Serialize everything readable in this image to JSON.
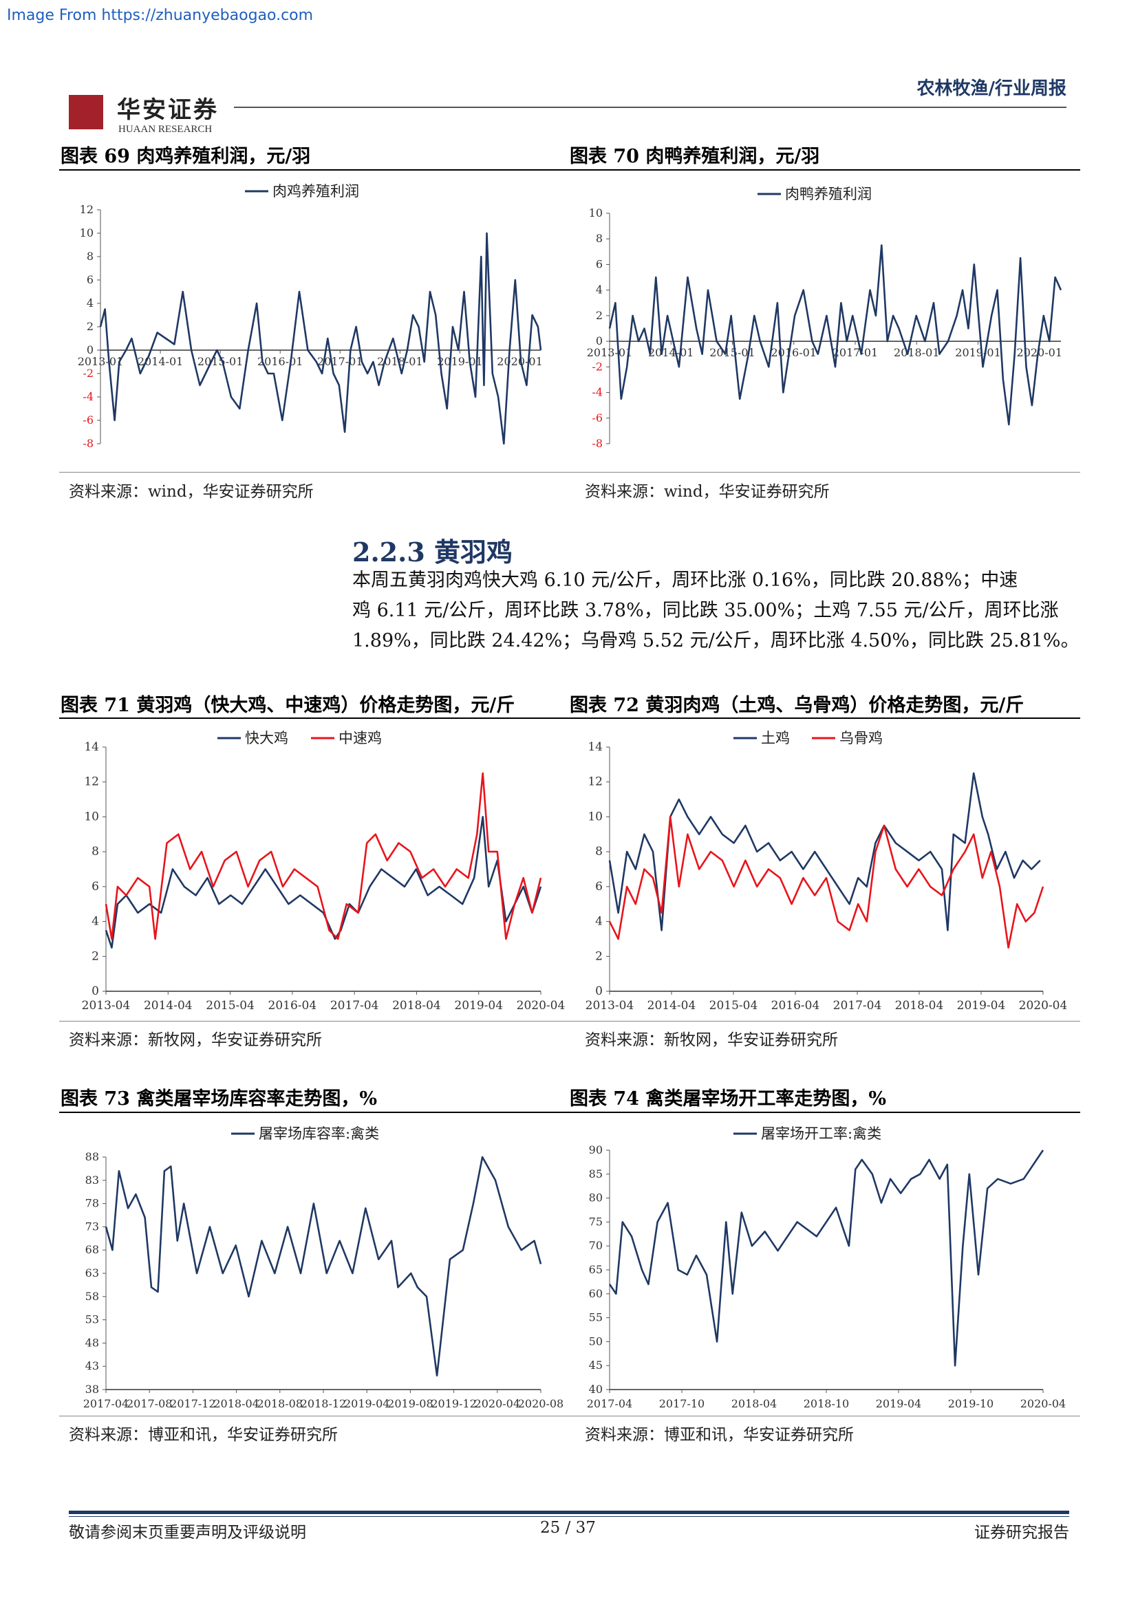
{
  "watermark": "Image From https://zhuanyebaogao.com",
  "header": {
    "logo_cn": "华安证券",
    "logo_en": "HUAAN RESEARCH",
    "category": "农林牧渔/行业周报"
  },
  "section": {
    "title": "2.2.3 黄羽鸡",
    "paragraph_lines": [
      "本周五黄羽肉鸡快大鸡 6.10 元/公斤，周环比涨 0.16%，同比跌 20.88%；中速",
      "鸡 6.11 元/公斤，周环比跌 3.78%，同比跌 35.00%；土鸡 7.55 元/公斤，周环比涨",
      "1.89%，同比跌 24.42%；乌骨鸡 5.52 元/公斤，周环比涨 4.50%，同比跌 25.81%。"
    ]
  },
  "figures": {
    "f69": {
      "title": "图表 69 肉鸡养殖利润，元/羽",
      "source": "资料来源：wind，华安证券研究所"
    },
    "f70": {
      "title": "图表 70 肉鸭养殖利润，元/羽",
      "source": "资料来源：wind，华安证券研究所"
    },
    "f71": {
      "title": "图表 71 黄羽鸡（快大鸡、中速鸡）价格走势图，元/斤",
      "source": "资料来源：新牧网，华安证券研究所"
    },
    "f72": {
      "title": "图表 72 黄羽肉鸡（土鸡、乌骨鸡）价格走势图，元/斤",
      "source": "资料来源：新牧网，华安证券研究所"
    },
    "f73": {
      "title": "图表 73 禽类屠宰场库容率走势图，%",
      "source": "资料来源：博亚和讯，华安证券研究所"
    },
    "f74": {
      "title": "图表 74 禽类屠宰场开工率走势图，%",
      "source": "资料来源：博亚和讯，华安证券研究所"
    }
  },
  "footer": {
    "disclaimer": "敬请参阅末页重要声明及评级说明",
    "page": "25 / 37",
    "report_type": "证券研究报告"
  },
  "chart_data": [
    {
      "id": "c69",
      "type": "line",
      "yticks": [
        "12",
        "10",
        "8",
        "6",
        "4",
        "2",
        "0",
        "-2",
        "-4",
        "-6",
        "-8"
      ],
      "ylim": [
        -8,
        12
      ],
      "xticks": [
        "2013-01",
        "2014-01",
        "2015-01",
        "2016-01",
        "2017-01",
        "2018-01",
        "2019-01",
        "2020-01"
      ],
      "xlim": [
        2013.0,
        2020.75
      ],
      "series": [
        {
          "name": "肉鸡养殖利润",
          "color": "#1f3864",
          "x": [
            2013.0,
            2013.08,
            2013.15,
            2013.25,
            2013.33,
            2013.45,
            2013.55,
            2013.7,
            2013.85,
            2014.0,
            2014.15,
            2014.3,
            2014.45,
            2014.6,
            2014.75,
            2014.85,
            2014.95,
            2015.05,
            2015.15,
            2015.3,
            2015.45,
            2015.6,
            2015.75,
            2015.85,
            2015.95,
            2016.05,
            2016.2,
            2016.35,
            2016.5,
            2016.65,
            2016.8,
            2016.9,
            2017.0,
            2017.1,
            2017.2,
            2017.3,
            2017.4,
            2017.5,
            2017.6,
            2017.7,
            2017.8,
            2017.9,
            2018.0,
            2018.15,
            2018.3,
            2018.4,
            2018.5,
            2018.6,
            2018.7,
            2018.8,
            2018.9,
            2019.0,
            2019.1,
            2019.2,
            2019.3,
            2019.4,
            2019.5,
            2019.6,
            2019.7,
            2019.75,
            2019.8,
            2019.9,
            2020.0,
            2020.1,
            2020.2,
            2020.3,
            2020.4,
            2020.5,
            2020.6,
            2020.7,
            2020.75
          ],
          "y": [
            2,
            3.5,
            -1,
            -6,
            -1,
            0,
            1,
            -2,
            -0.5,
            1.5,
            1,
            0.5,
            5,
            0,
            -3,
            -2,
            -1,
            0,
            -1,
            -4,
            -5,
            0,
            4,
            -1,
            -2,
            -2,
            -6,
            -1,
            5,
            0,
            -1,
            -2,
            1,
            -2,
            -3,
            -7,
            0,
            2,
            -1,
            -2,
            -1,
            -3,
            -1,
            1,
            -2,
            0,
            3,
            2,
            -1,
            5,
            3,
            -2,
            -5,
            2,
            0,
            5,
            -1,
            -4,
            8,
            -3,
            10,
            -2,
            -4,
            -8,
            0,
            6,
            -1,
            -3,
            3,
            2,
            0
          ]
        }
      ]
    },
    {
      "id": "c70",
      "type": "line",
      "yticks": [
        "10",
        "8",
        "6",
        "4",
        "2",
        "0",
        "-2",
        "-4",
        "-6",
        "-8"
      ],
      "ylim": [
        -8,
        10
      ],
      "xticks": [
        "2013-01",
        "2014-01",
        "2015-01",
        "2016-01",
        "2017-01",
        "2018-01",
        "2019-01",
        "2020-01"
      ],
      "xlim": [
        2013.0,
        2020.8
      ],
      "series": [
        {
          "name": "肉鸭养殖利润",
          "color": "#1f3864",
          "x": [
            2013.0,
            2013.1,
            2013.2,
            2013.3,
            2013.4,
            2013.5,
            2013.6,
            2013.7,
            2013.8,
            2013.9,
            2014.0,
            2014.1,
            2014.2,
            2014.35,
            2014.5,
            2014.6,
            2014.7,
            2014.85,
            2015.0,
            2015.1,
            2015.25,
            2015.4,
            2015.5,
            2015.6,
            2015.75,
            2015.9,
            2016.0,
            2016.1,
            2016.2,
            2016.35,
            2016.5,
            2016.6,
            2016.75,
            2016.9,
            2017.0,
            2017.1,
            2017.2,
            2017.35,
            2017.5,
            2017.6,
            2017.7,
            2017.8,
            2017.9,
            2018.0,
            2018.15,
            2018.3,
            2018.45,
            2018.6,
            2018.7,
            2018.85,
            2019.0,
            2019.1,
            2019.2,
            2019.3,
            2019.45,
            2019.6,
            2019.7,
            2019.8,
            2019.9,
            2020.0,
            2020.1,
            2020.2,
            2020.3,
            2020.4,
            2020.5,
            2020.6,
            2020.7,
            2020.8
          ],
          "y": [
            1,
            3,
            -4.5,
            -2,
            2,
            0,
            1,
            -1,
            5,
            -1,
            2,
            0,
            -2,
            5,
            1,
            -1,
            4,
            0,
            -1,
            2,
            -4.5,
            -1,
            2,
            0,
            -2,
            3,
            -4,
            -1,
            2,
            4,
            0,
            -1,
            2,
            -2,
            3,
            0,
            2,
            -1,
            4,
            2,
            7.5,
            0,
            2,
            1,
            -1,
            2,
            0,
            3,
            -1,
            0,
            2,
            4,
            1,
            6,
            -2,
            2,
            4,
            -3,
            -6.5,
            -1,
            6.5,
            -2,
            -5,
            -1,
            2,
            0,
            5,
            4
          ]
        }
      ]
    },
    {
      "id": "c71",
      "type": "line",
      "yticks": [
        "14",
        "12",
        "10",
        "8",
        "6",
        "4",
        "2",
        "0"
      ],
      "ylim": [
        0,
        14
      ],
      "xticks": [
        "2013-04",
        "2014-04",
        "2015-04",
        "2016-04",
        "2017-04",
        "2018-04",
        "2019-04",
        "2020-04"
      ],
      "xlim": [
        2013.25,
        2020.75
      ],
      "series": [
        {
          "name": "快大鸡",
          "color": "#1f3864",
          "x": [
            2013.25,
            2013.35,
            2013.45,
            2013.6,
            2013.8,
            2014.0,
            2014.2,
            2014.4,
            2014.6,
            2014.8,
            2015.0,
            2015.2,
            2015.4,
            2015.6,
            2015.8,
            2016.0,
            2016.2,
            2016.4,
            2016.6,
            2016.8,
            2017.0,
            2017.2,
            2017.3,
            2017.45,
            2017.6,
            2017.8,
            2018.0,
            2018.2,
            2018.4,
            2018.6,
            2018.8,
            2019.0,
            2019.2,
            2019.4,
            2019.6,
            2019.75,
            2019.85,
            2020.0,
            2020.15,
            2020.3,
            2020.45,
            2020.6,
            2020.75
          ],
          "y": [
            3.5,
            2.5,
            5,
            5.5,
            4.5,
            5,
            4.5,
            7,
            6,
            5.5,
            6.5,
            5,
            5.5,
            5,
            6,
            7,
            6,
            5,
            5.5,
            5,
            4.5,
            3,
            3.5,
            5,
            4.5,
            6,
            7,
            6.5,
            6,
            7,
            5.5,
            6,
            5.5,
            5,
            6.5,
            10,
            6,
            7.5,
            4,
            5,
            6,
            4.5,
            6
          ]
        },
        {
          "name": "中速鸡",
          "color": "#e8141b",
          "x": [
            2013.25,
            2013.35,
            2013.45,
            2013.6,
            2013.8,
            2014.0,
            2014.1,
            2014.3,
            2014.5,
            2014.7,
            2014.9,
            2015.1,
            2015.3,
            2015.5,
            2015.7,
            2015.9,
            2016.1,
            2016.3,
            2016.5,
            2016.7,
            2016.9,
            2017.1,
            2017.25,
            2017.4,
            2017.6,
            2017.75,
            2017.9,
            2018.1,
            2018.3,
            2018.5,
            2018.7,
            2018.9,
            2019.1,
            2019.3,
            2019.5,
            2019.65,
            2019.75,
            2019.85,
            2020.0,
            2020.15,
            2020.3,
            2020.45,
            2020.6,
            2020.75
          ],
          "y": [
            5,
            3,
            6,
            5.5,
            6.5,
            6,
            3,
            8.5,
            9,
            7,
            8,
            6,
            7.5,
            8,
            6,
            7.5,
            8,
            6,
            7,
            6.5,
            6,
            3.5,
            3,
            5,
            4.5,
            8.5,
            9,
            7.5,
            8.5,
            8,
            6.5,
            7,
            6,
            7,
            6.5,
            9,
            12.5,
            8,
            8,
            3,
            5,
            6.5,
            4.5,
            6.5
          ]
        }
      ]
    },
    {
      "id": "c72",
      "type": "line",
      "yticks": [
        "14",
        "12",
        "10",
        "8",
        "6",
        "4",
        "2",
        "0"
      ],
      "ylim": [
        0,
        14
      ],
      "xticks": [
        "2013-04",
        "2014-04",
        "2015-04",
        "2016-04",
        "2017-04",
        "2018-04",
        "2019-04",
        "2020-04"
      ],
      "xlim": [
        2013.25,
        2020.75
      ],
      "series": [
        {
          "name": "土鸡",
          "color": "#1f3864",
          "x": [
            2013.25,
            2013.4,
            2013.55,
            2013.7,
            2013.85,
            2014.0,
            2014.15,
            2014.3,
            2014.45,
            2014.6,
            2014.8,
            2015.0,
            2015.2,
            2015.4,
            2015.6,
            2015.8,
            2016.0,
            2016.2,
            2016.4,
            2016.6,
            2016.8,
            2017.0,
            2017.2,
            2017.4,
            2017.55,
            2017.7,
            2017.85,
            2018.0,
            2018.2,
            2018.4,
            2018.6,
            2018.8,
            2019.0,
            2019.1,
            2019.2,
            2019.4,
            2019.55,
            2019.7,
            2019.8,
            2019.95,
            2020.1,
            2020.25,
            2020.4,
            2020.55,
            2020.7
          ],
          "y": [
            7.5,
            4.5,
            8,
            7,
            9,
            8,
            3.5,
            10,
            11,
            10,
            9,
            10,
            9,
            8.5,
            9.5,
            8,
            8.5,
            7.5,
            8,
            7,
            8,
            7,
            6,
            5,
            6.5,
            6,
            8.5,
            9.5,
            8.5,
            8,
            7.5,
            8,
            7,
            3.5,
            9,
            8.5,
            12.5,
            10,
            9,
            7,
            8,
            6.5,
            7.5,
            7,
            7.5
          ]
        },
        {
          "name": "乌骨鸡",
          "color": "#e8141b",
          "x": [
            2013.25,
            2013.4,
            2013.55,
            2013.7,
            2013.85,
            2014.0,
            2014.15,
            2014.3,
            2014.45,
            2014.6,
            2014.8,
            2015.0,
            2015.2,
            2015.4,
            2015.6,
            2015.8,
            2016.0,
            2016.2,
            2016.4,
            2016.6,
            2016.8,
            2017.0,
            2017.2,
            2017.4,
            2017.55,
            2017.7,
            2017.85,
            2018.0,
            2018.2,
            2018.4,
            2018.6,
            2018.8,
            2019.0,
            2019.2,
            2019.4,
            2019.55,
            2019.7,
            2019.85,
            2020.0,
            2020.15,
            2020.3,
            2020.45,
            2020.6,
            2020.75
          ],
          "y": [
            4,
            3,
            6,
            5,
            7,
            6.5,
            4.5,
            10,
            6,
            9,
            7,
            8,
            7.5,
            6,
            7.5,
            6,
            7,
            6.5,
            5,
            6.5,
            5.5,
            6.5,
            4,
            3.5,
            5,
            4,
            8,
            9.5,
            7,
            6,
            7,
            6,
            5.5,
            7,
            8,
            9,
            6.5,
            8,
            6,
            2.5,
            5,
            4,
            4.5,
            6
          ]
        }
      ]
    },
    {
      "id": "c73",
      "type": "line",
      "yticks": [
        "88",
        "83",
        "78",
        "73",
        "68",
        "63",
        "58",
        "53",
        "48",
        "43",
        "38"
      ],
      "ylim": [
        38,
        88
      ],
      "xticks": [
        "2017-04",
        "2017-08",
        "2017-12",
        "2018-04",
        "2018-08",
        "2018-12",
        "2019-04",
        "2019-08",
        "2019-12",
        "2020-04",
        "2020-08"
      ],
      "xlim": [
        2017.25,
        2020.6
      ],
      "series": [
        {
          "name": "屠宰场库容率:禽类",
          "color": "#1f3864",
          "x": [
            2017.25,
            2017.3,
            2017.35,
            2017.42,
            2017.48,
            2017.55,
            2017.6,
            2017.65,
            2017.7,
            2017.75,
            2017.8,
            2017.85,
            2017.95,
            2018.05,
            2018.15,
            2018.25,
            2018.35,
            2018.45,
            2018.55,
            2018.65,
            2018.75,
            2018.85,
            2018.95,
            2019.05,
            2019.15,
            2019.25,
            2019.35,
            2019.45,
            2019.5,
            2019.6,
            2019.65,
            2019.72,
            2019.8,
            2019.9,
            2020.0,
            2020.08,
            2020.15,
            2020.25,
            2020.35,
            2020.45,
            2020.55,
            2020.6
          ],
          "y": [
            73,
            68,
            85,
            77,
            80,
            75,
            60,
            59,
            85,
            86,
            70,
            78,
            63,
            73,
            63,
            69,
            58,
            70,
            63,
            73,
            63,
            78,
            63,
            70,
            63,
            77,
            66,
            70,
            60,
            63,
            60,
            58,
            41,
            66,
            68,
            78,
            88,
            83,
            73,
            68,
            70,
            65
          ]
        }
      ]
    },
    {
      "id": "c74",
      "type": "line",
      "yticks": [
        "90",
        "85",
        "80",
        "75",
        "70",
        "65",
        "60",
        "55",
        "50",
        "45",
        "40"
      ],
      "ylim": [
        40,
        90
      ],
      "xticks": [
        "2017-04",
        "2017-10",
        "2018-04",
        "2018-10",
        "2019-04",
        "2019-10",
        "2020-04"
      ],
      "xlim": [
        2017.25,
        2020.6
      ],
      "series": [
        {
          "name": "屠宰场开工率:禽类",
          "color": "#1f3864",
          "x": [
            2017.25,
            2017.3,
            2017.35,
            2017.42,
            2017.5,
            2017.55,
            2017.62,
            2017.7,
            2017.78,
            2017.85,
            2017.92,
            2018.0,
            2018.08,
            2018.15,
            2018.2,
            2018.27,
            2018.35,
            2018.45,
            2018.55,
            2018.7,
            2018.85,
            2019.0,
            2019.1,
            2019.15,
            2019.2,
            2019.28,
            2019.35,
            2019.42,
            2019.5,
            2019.58,
            2019.65,
            2019.72,
            2019.8,
            2019.86,
            2019.92,
            2019.98,
            2020.03,
            2020.1,
            2020.17,
            2020.25,
            2020.35,
            2020.45,
            2020.55,
            2020.6
          ],
          "y": [
            62,
            60,
            75,
            72,
            65,
            62,
            75,
            79,
            65,
            64,
            68,
            64,
            50,
            75,
            60,
            77,
            70,
            73,
            69,
            75,
            72,
            78,
            70,
            86,
            88,
            85,
            79,
            84,
            81,
            84,
            85,
            88,
            84,
            87,
            45,
            70,
            85,
            64,
            82,
            84,
            83,
            84,
            88,
            90
          ]
        }
      ]
    }
  ]
}
